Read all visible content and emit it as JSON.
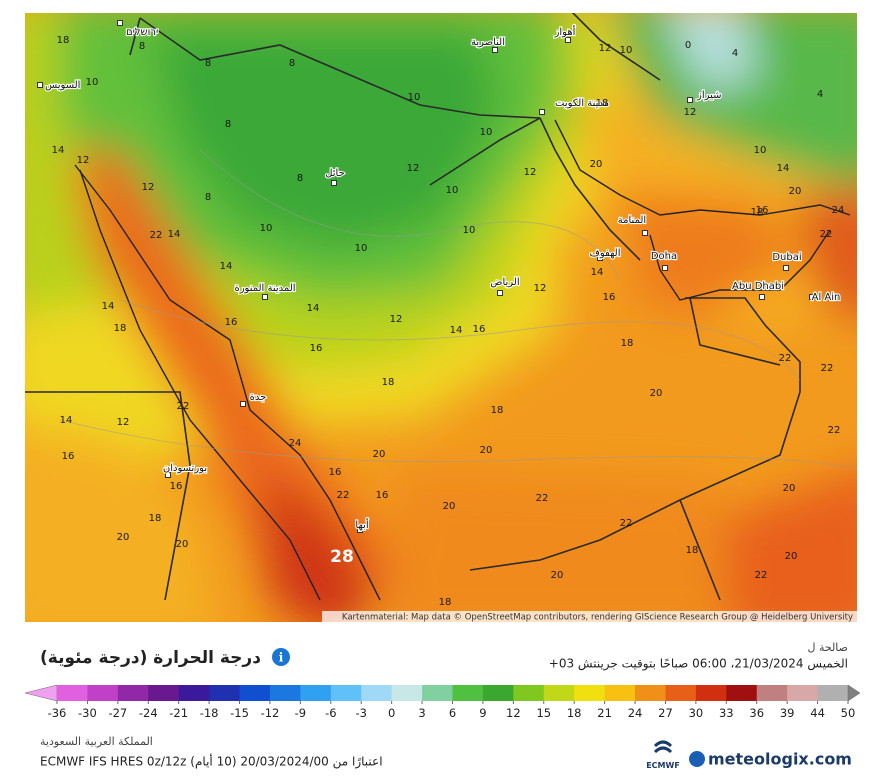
{
  "map": {
    "cities": [
      "ירושלים",
      "السويس",
      "الناصرية",
      "أهواز",
      "مدينة الكويت",
      "شيراز",
      "حائل",
      "المنامة",
      "الهفوف",
      "Doha",
      "Dubai",
      "Abu Dhabi",
      "Al Ain",
      "الرياض",
      "المدينة المنورة",
      "جدة",
      "بورتسودان",
      "أبها"
    ],
    "temperatures": [
      18,
      8,
      10,
      8,
      8,
      10,
      12,
      10,
      0,
      4,
      4,
      18,
      10,
      12,
      10,
      14,
      20,
      20,
      8,
      8,
      12,
      12,
      10,
      14,
      12,
      12,
      8,
      10,
      10,
      10,
      22,
      14,
      14,
      16,
      18,
      24,
      22,
      14,
      12,
      16,
      14,
      18,
      14,
      12,
      14,
      16,
      16,
      16,
      18,
      22,
      22,
      18,
      20,
      12,
      14,
      22,
      18,
      24,
      16,
      20,
      20,
      22,
      16,
      16,
      22,
      16,
      22,
      20,
      18,
      20,
      22,
      20,
      20,
      28,
      18,
      20,
      22,
      20,
      18
    ],
    "attribution": "Kartenmaterial: Map data © OpenStreetMap contributors, rendering GIScience Research Group @ Heidelberg University"
  },
  "legend": {
    "title": "درجة الحرارة (درجة مئوية)",
    "valid_label": "صالحة ل",
    "valid_time": "الخميس 21/03/2024، 06:00 صباحًا بتوقيت جرينتش 03+",
    "ticks": [
      -36,
      -30,
      -27,
      -24,
      -21,
      -18,
      -15,
      -12,
      -9,
      -6,
      -3,
      0,
      3,
      6,
      9,
      12,
      15,
      18,
      21,
      24,
      27,
      30,
      33,
      36,
      39,
      44,
      50
    ],
    "colors": [
      "#f0a0f0",
      "#e060e0",
      "#c040c8",
      "#9028a8",
      "#6a1890",
      "#3a1a9a",
      "#2030b0",
      "#1050d0",
      "#1a78e0",
      "#30a0f0",
      "#60c0f8",
      "#a0d8f8",
      "#c8e8e8",
      "#80d0a0",
      "#50c040",
      "#3aa830",
      "#80c820",
      "#c0d818",
      "#f0e010",
      "#f8c010",
      "#f09018",
      "#e86018",
      "#d03010",
      "#a01010",
      "#c08080",
      "#d8a8a8",
      "#b0b0b0",
      "#808080"
    ]
  },
  "footer": {
    "region": "المملكة العربية السعودية",
    "model": "اعتبارًا من 20/03/2024/00 (10 أيام) ECMWF IFS HRES 0z/12z",
    "brand": "meteologix.com",
    "ecmwf": "ECMWF"
  }
}
